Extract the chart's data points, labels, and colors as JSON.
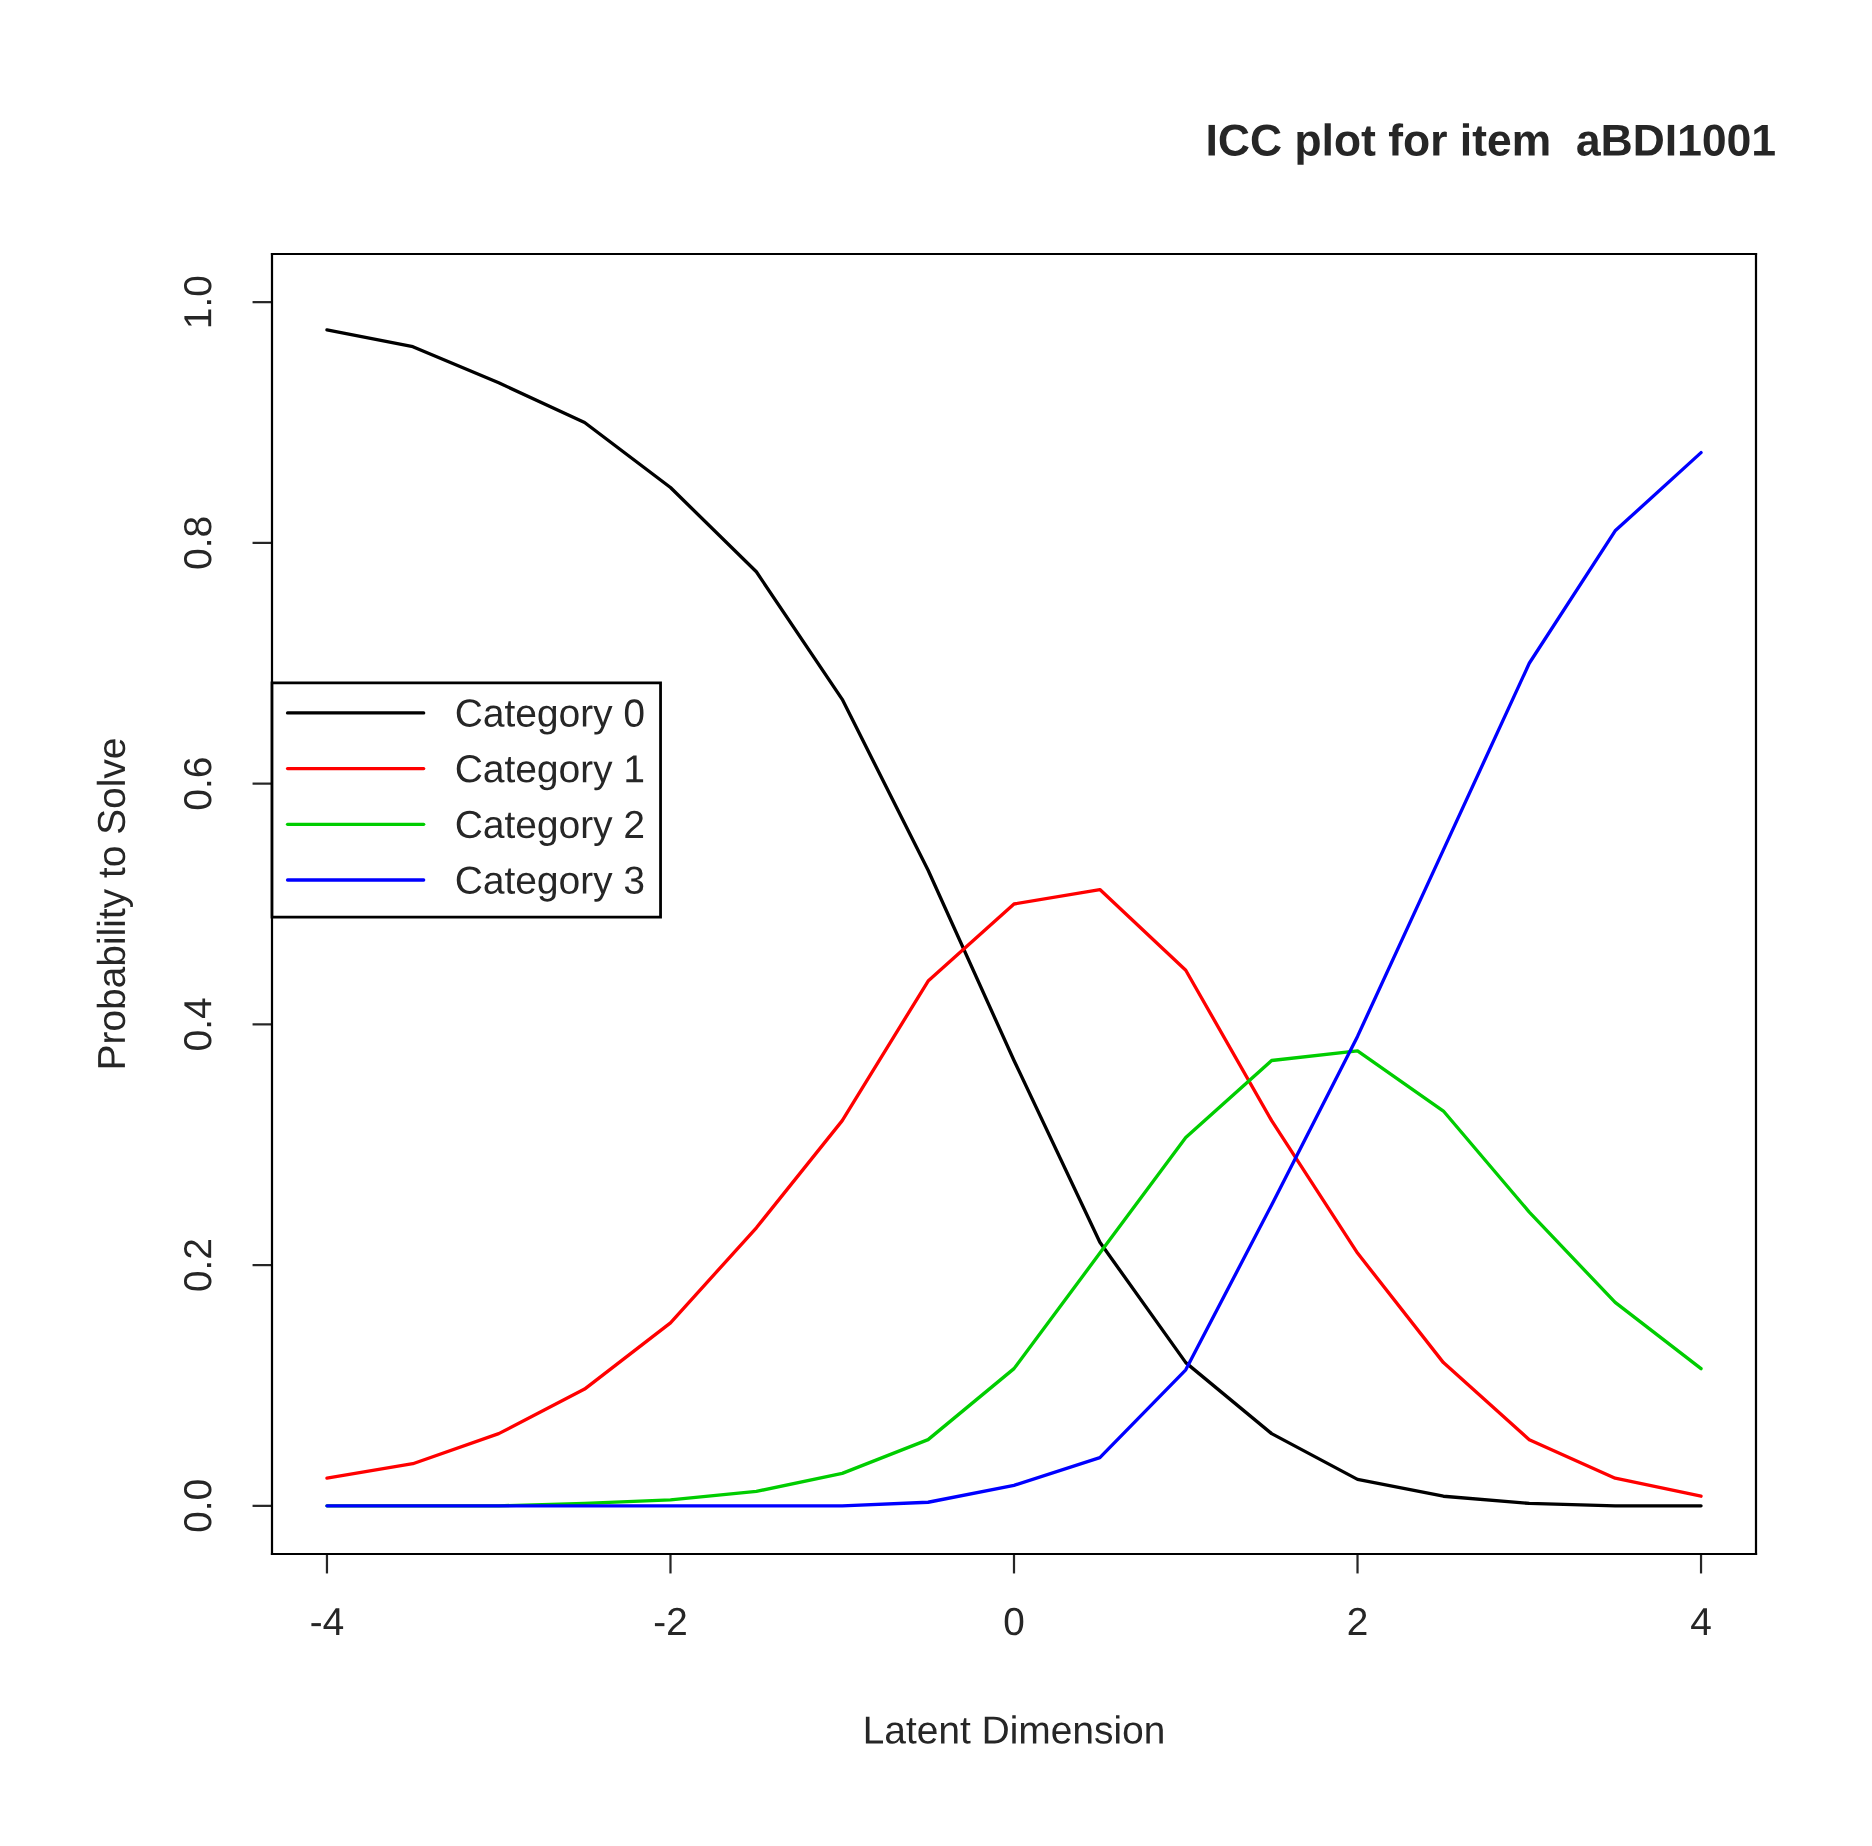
{
  "chart_data": {
    "type": "line",
    "title": "ICC plot for item  aBDI1001",
    "xlabel": "Latent Dimension",
    "ylabel": "Probability to Solve",
    "x": [
      -4,
      -3.5,
      -3,
      -2.5,
      -2,
      -1.5,
      -1,
      -0.5,
      0,
      0.5,
      1,
      1.5,
      2,
      2.5,
      3,
      3.5,
      4
    ],
    "series": [
      {
        "name": "Category 0",
        "color": "#000000",
        "values": [
          0.977,
          0.963,
          0.933,
          0.9,
          0.846,
          0.776,
          0.67,
          0.528,
          0.37,
          0.219,
          0.119,
          0.06,
          0.022,
          0.008,
          0.002,
          0,
          0
        ]
      },
      {
        "name": "Category 1",
        "color": "#ff0000",
        "values": [
          0.023,
          0.035,
          0.06,
          0.097,
          0.152,
          0.231,
          0.32,
          0.436,
          0.5,
          0.512,
          0.445,
          0.32,
          0.21,
          0.119,
          0.055,
          0.023,
          0.008
        ]
      },
      {
        "name": "Category 2",
        "color": "#00cd00",
        "values": [
          0,
          0,
          0,
          0.002,
          0.005,
          0.012,
          0.027,
          0.055,
          0.114,
          0.21,
          0.306,
          0.37,
          0.378,
          0.328,
          0.244,
          0.169,
          0.114
        ]
      },
      {
        "name": "Category 3",
        "color": "#0000ff",
        "values": [
          0,
          0,
          0,
          0,
          0,
          0,
          0,
          0.003,
          0.017,
          0.04,
          0.113,
          0.25,
          0.39,
          0.545,
          0.7,
          0.81,
          0.875
        ]
      }
    ],
    "xlim": [
      -4.32,
      4.32
    ],
    "ylim": [
      -0.04,
      1.04
    ],
    "xticks": [
      -4,
      -2,
      0,
      2,
      4
    ],
    "yticks": [
      {
        "value": 0,
        "label": "0.0"
      },
      0.2,
      0.4,
      0.6,
      0.8,
      {
        "value": 1,
        "label": "1.0"
      }
    ],
    "grid": false,
    "legend": "left",
    "line_style": "solid",
    "marker": "none"
  }
}
